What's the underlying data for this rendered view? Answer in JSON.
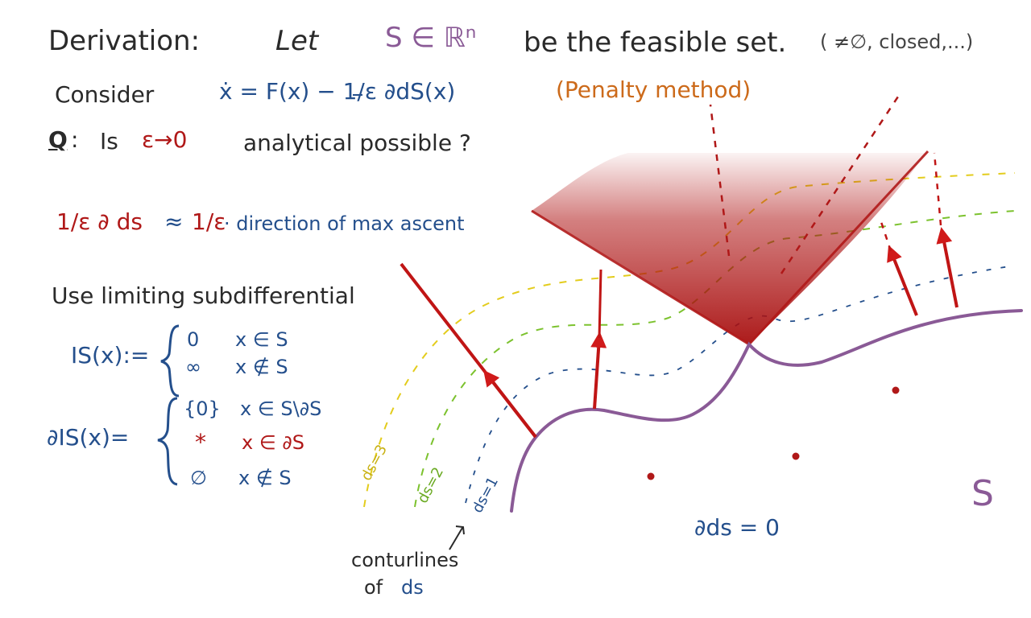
{
  "header": {
    "derivation": "Derivation:",
    "let": "Let",
    "set_symbol": "S ∈ ℝⁿ",
    "be_feasible": "be the feasible set.",
    "conditions": "( ≠∅, closed,...)"
  },
  "consider": {
    "label": "Consider",
    "equation": "ẋ = F(x) − 1/ε ∂dS(x)",
    "penalty": "(Penalty method)"
  },
  "question": {
    "q": "Q",
    "colon": ":",
    "is": "Is",
    "limit": "ε→0",
    "rest": "analytical possible ?"
  },
  "approx": {
    "lhs": "1/ε ∂ ds",
    "approx_sign": "≈",
    "coef": "1/ε",
    "rhs": "· direction of max ascent"
  },
  "limiting": {
    "heading": "Use limiting subdifferential"
  },
  "indicator": {
    "lhs": "IS(x):=",
    "row1_val": "0",
    "row1_cond": "x ∈ S",
    "row2_val": "∞",
    "row2_cond": "x ∉ S"
  },
  "subdiff": {
    "lhs": "∂IS(x)=",
    "row1_val": "{0}",
    "row1_cond": "x ∈ S\\∂S",
    "row2_val": "*",
    "row2_cond": "x ∈ ∂S",
    "row3_val": "∅",
    "row3_cond": "x ∉ S"
  },
  "contours": {
    "d3": "ds=3",
    "d2": "ds=2",
    "d1": "ds=1",
    "caption_line1": "conturlines",
    "caption_line2": "of",
    "caption_ds": "ds"
  },
  "region": {
    "zero_grad": "∂ds = 0",
    "set_label": "S"
  },
  "colors": {
    "red": "#b01818",
    "blue": "#244f8c",
    "purple": "#8a5a96",
    "yellow": "#e3cc1c",
    "green": "#7cc22e",
    "orange": "#cc6a1a"
  }
}
